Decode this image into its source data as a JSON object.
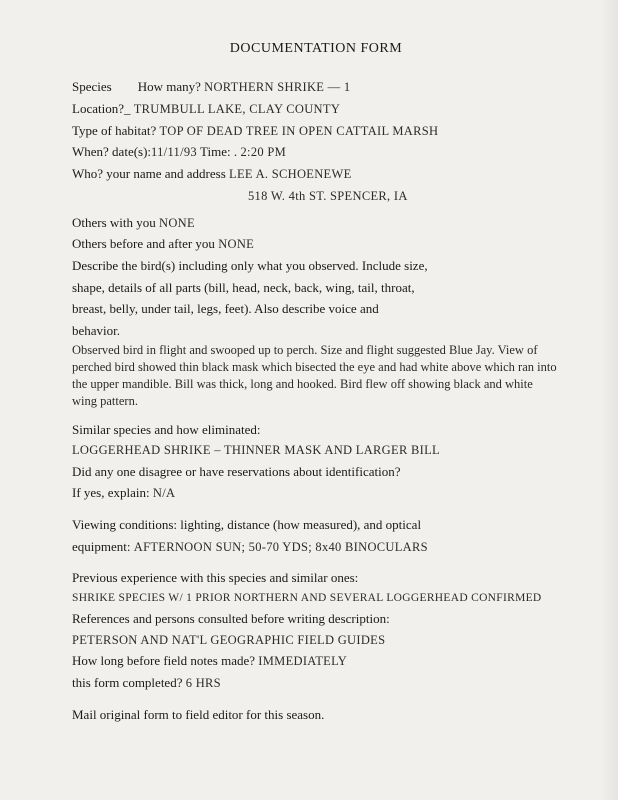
{
  "title": "DOCUMENTATION FORM",
  "fields": {
    "species_label": "Species  How many?",
    "species_value": "NORTHERN  SHRIKE — 1",
    "location_label": "Location?_",
    "location_value": "TRUMBULL LAKE,  CLAY COUNTY",
    "habitat_label": "Type of habitat?",
    "habitat_value": "TOP OF DEAD TREE IN OPEN CATTAIL MARSH",
    "when_label": "When? date(s):",
    "when_date": "11/11/93",
    "time_label": " Time: .",
    "when_time": " 2:20 PM",
    "who_label": "Who? your name and address",
    "who_name": "LEE A. SCHOENEWE",
    "who_addr": "518 W. 4th ST.  SPENCER, IA",
    "others_with_label": "Others with you",
    "others_with_value": "NONE",
    "others_before_label": "Others before and after you",
    "others_before_value": "NONE",
    "describe_label1": "Describe the bird(s) including only what you observed. Include size,",
    "describe_label2": "shape, details of all parts (bill, head, neck, back, wing, tail, throat,",
    "describe_label3": "breast, belly, under tail, legs, feet). Also describe voice and",
    "describe_label4": "behavior.",
    "describe_value": "Observed bird in flight and swooped up to perch. Size and flight suggested Blue Jay. View of perched bird showed thin black mask which bisected the eye and had white above which ran into the upper mandible. Bill was thick, long and hooked. Bird flew off showing black and white wing pattern.",
    "similar_label": "Similar species and how eliminated:",
    "similar_value": "LOGGERHEAD SHRIKE – THINNER MASK AND LARGER BILL",
    "disagree_label1": "Did any one disagree or have reservations about identification?",
    "disagree_label2": "If yes, explain:",
    "disagree_value": "N/A",
    "viewing_label1": "Viewing conditions: lighting, distance (how measured), and optical",
    "viewing_label2": "equipment:",
    "viewing_value": "AFTERNOON SUN;  50-70 YDS;  8x40 BINOCULARS",
    "prev_label": "Previous experience with this species and similar ones:",
    "prev_value": "SHRIKE SPECIES W/ 1 PRIOR NORTHERN AND SEVERAL LOGGERHEAD CONFIRMED",
    "refs_label": "References and persons consulted before writing description:",
    "refs_value": "PETERSON AND NAT'L GEOGRAPHIC FIELD GUIDES",
    "howlong_label": "How long before field notes made?",
    "howlong_value": "IMMEDIATELY",
    "formcomp_label": "this form completed?",
    "formcomp_value": "6 HRS",
    "mail_label": "Mail original form to field editor for this season."
  }
}
